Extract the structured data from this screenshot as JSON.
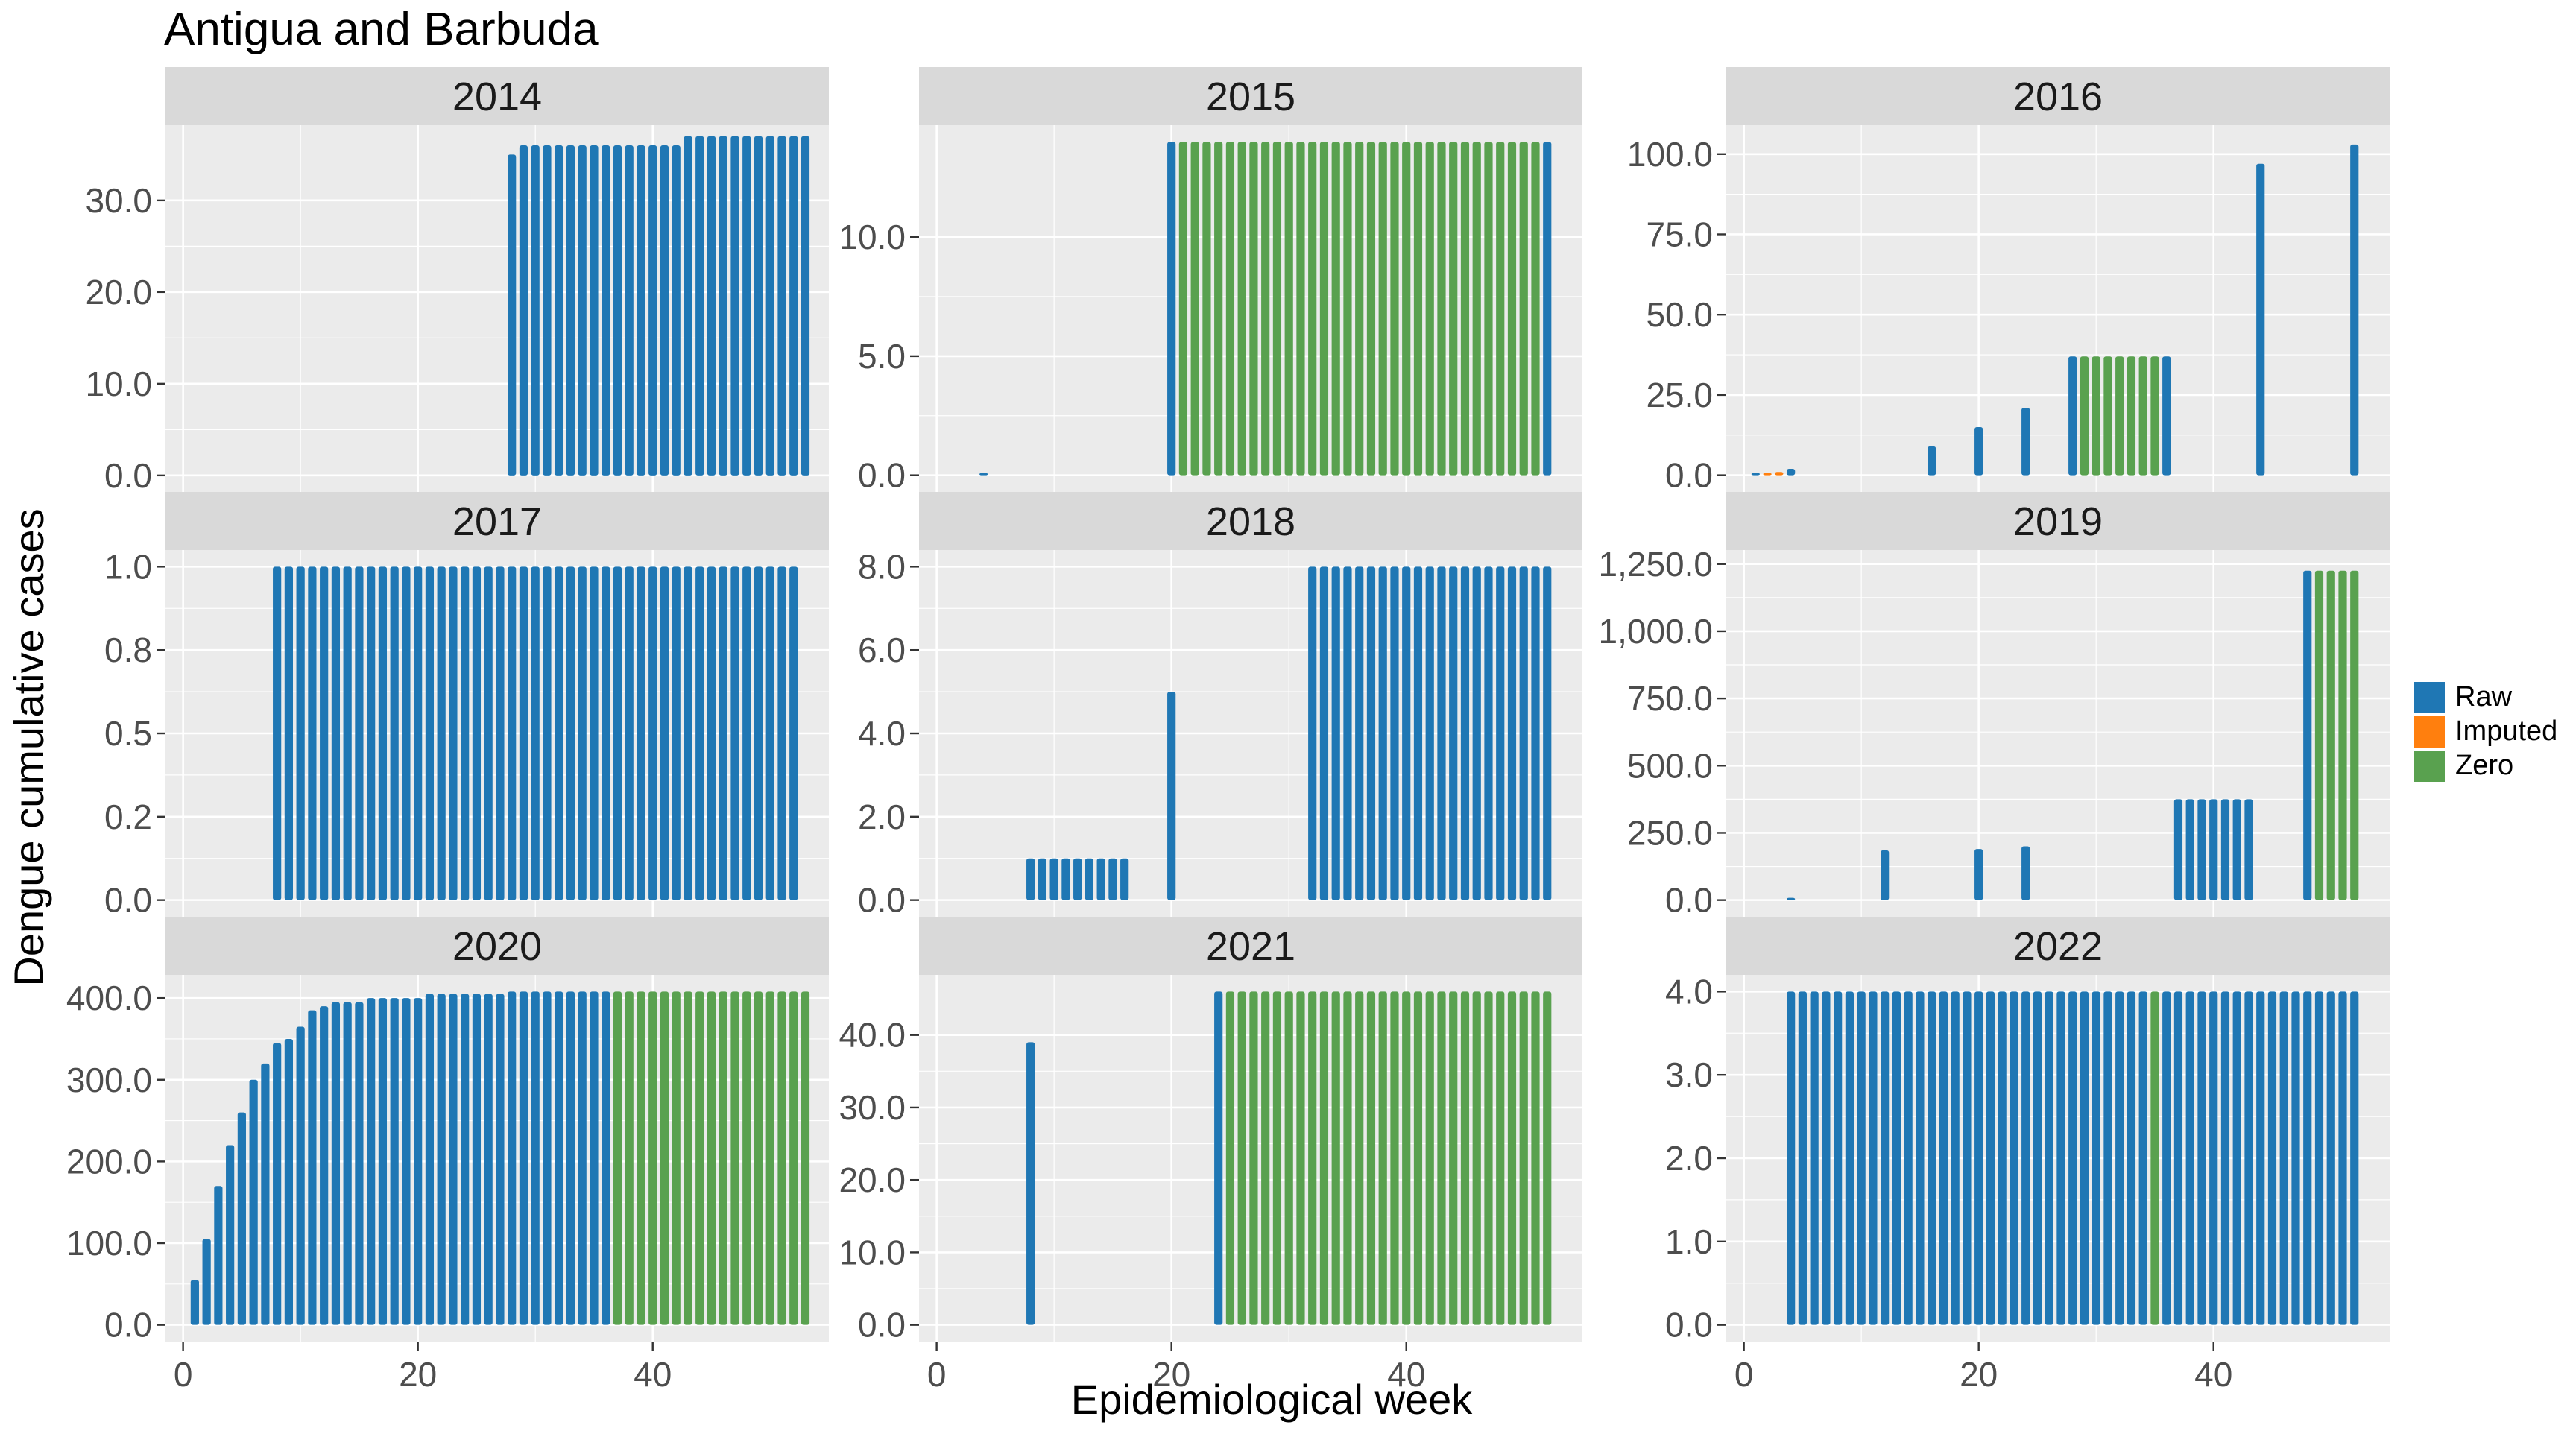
{
  "title": "Antigua and Barbuda",
  "xlabel": "Epidemiological week",
  "ylabel": "Dengue cumulative cases",
  "legend": [
    {
      "label": "Raw",
      "color": "#1F77B4"
    },
    {
      "label": "Imputed",
      "color": "#FF7F0E"
    },
    {
      "label": "Zero",
      "color": "#59A14F"
    }
  ],
  "chart_data": {
    "type": "bar",
    "facet": "year",
    "x_axis": {
      "range": [
        -1.5,
        55
      ],
      "ticks": [
        0,
        20,
        40
      ],
      "tick_labels": [
        "0",
        "20",
        "40"
      ]
    },
    "panels": [
      {
        "year": "2014",
        "ylim": [
          -1.8,
          38.2
        ],
        "y_ticks": [
          0,
          10,
          20,
          30
        ],
        "y_tick_labels": [
          "0.0",
          "10.0",
          "20.0",
          "30.0"
        ],
        "bars": [
          {
            "start": 28,
            "end": 42,
            "type": "Raw",
            "values": [
              35,
              36,
              36,
              36,
              36,
              36,
              36,
              36,
              36,
              36,
              36,
              36,
              36,
              36,
              36
            ]
          },
          {
            "start": 43,
            "end": 53,
            "type": "Raw",
            "values": [
              37,
              37,
              37,
              37,
              37,
              37,
              37,
              37,
              37,
              37,
              37
            ]
          }
        ]
      },
      {
        "year": "2015",
        "ylim": [
          -0.7,
          14.7
        ],
        "y_ticks": [
          0,
          5,
          10
        ],
        "y_tick_labels": [
          "0.0",
          "5.0",
          "10.0"
        ],
        "bars": [
          {
            "start": 4,
            "end": 4,
            "type": "Raw",
            "values": [
              0
            ]
          },
          {
            "start": 20,
            "end": 20,
            "type": "Raw",
            "values": [
              14
            ]
          },
          {
            "start": 21,
            "end": 51,
            "type": "Zero",
            "fill": 14
          },
          {
            "start": 52,
            "end": 52,
            "type": "Raw",
            "values": [
              14
            ]
          }
        ]
      },
      {
        "year": "2016",
        "ylim": [
          -5.2,
          109
        ],
        "y_ticks": [
          0,
          25,
          50,
          75,
          100
        ],
        "y_tick_labels": [
          "0.0",
          "25.0",
          "50.0",
          "75.0",
          "100.0"
        ],
        "bars": [
          {
            "start": 1,
            "end": 1,
            "type": "Raw",
            "values": [
              0
            ]
          },
          {
            "start": 2,
            "end": 3,
            "type": "Imputed",
            "values": [
              0,
              1
            ]
          },
          {
            "start": 4,
            "end": 4,
            "type": "Raw",
            "values": [
              2
            ]
          },
          {
            "start": 16,
            "end": 16,
            "type": "Raw",
            "values": [
              9
            ]
          },
          {
            "start": 20,
            "end": 20,
            "type": "Raw",
            "values": [
              15
            ]
          },
          {
            "start": 24,
            "end": 24,
            "type": "Raw",
            "values": [
              21
            ]
          },
          {
            "start": 28,
            "end": 28,
            "type": "Raw",
            "values": [
              37
            ]
          },
          {
            "start": 29,
            "end": 35,
            "type": "Zero",
            "fill": 37
          },
          {
            "start": 36,
            "end": 36,
            "type": "Raw",
            "values": [
              37
            ]
          },
          {
            "start": 44,
            "end": 44,
            "type": "Raw",
            "values": [
              97
            ]
          },
          {
            "start": 52,
            "end": 52,
            "type": "Raw",
            "values": [
              103
            ]
          }
        ]
      },
      {
        "year": "2017",
        "ylim": [
          -0.05,
          1.05
        ],
        "y_ticks": [
          0,
          0.25,
          0.5,
          0.75,
          1
        ],
        "y_tick_labels": [
          "0.0",
          "0.2",
          "0.5",
          "0.8",
          "1.0"
        ],
        "bars": [
          {
            "start": 8,
            "end": 52,
            "type": "Raw",
            "fill": 1
          }
        ]
      },
      {
        "year": "2018",
        "ylim": [
          -0.4,
          8.4
        ],
        "y_ticks": [
          0,
          2,
          4,
          6,
          8
        ],
        "y_tick_labels": [
          "0.0",
          "2.0",
          "4.0",
          "6.0",
          "8.0"
        ],
        "bars": [
          {
            "start": 8,
            "end": 16,
            "type": "Raw",
            "fill": 1
          },
          {
            "start": 20,
            "end": 20,
            "type": "Raw",
            "values": [
              5
            ]
          },
          {
            "start": 32,
            "end": 52,
            "type": "Raw",
            "fill": 8
          }
        ]
      },
      {
        "year": "2019",
        "ylim": [
          -62,
          1302
        ],
        "y_ticks": [
          0,
          250,
          500,
          750,
          1000,
          1250
        ],
        "y_tick_labels": [
          "0.0",
          "250.0",
          "500.0",
          "750.0",
          "1,000.0",
          "1,250.0"
        ],
        "bars": [
          {
            "start": 4,
            "end": 4,
            "type": "Raw",
            "values": [
              2
            ]
          },
          {
            "start": 12,
            "end": 12,
            "type": "Raw",
            "values": [
              185
            ]
          },
          {
            "start": 20,
            "end": 20,
            "type": "Raw",
            "values": [
              190
            ]
          },
          {
            "start": 24,
            "end": 24,
            "type": "Raw",
            "values": [
              200
            ]
          },
          {
            "start": 37,
            "end": 43,
            "type": "Raw",
            "fill": 375
          },
          {
            "start": 48,
            "end": 48,
            "type": "Raw",
            "values": [
              1225
            ]
          },
          {
            "start": 49,
            "end": 52,
            "type": "Zero",
            "fill": 1225
          }
        ]
      },
      {
        "year": "2020",
        "ylim": [
          -20.4,
          428.4
        ],
        "y_ticks": [
          0,
          100,
          200,
          300,
          400
        ],
        "y_tick_labels": [
          "0.0",
          "100.0",
          "200.0",
          "300.0",
          "400.0"
        ],
        "bars": [
          {
            "start": 1,
            "end": 27,
            "type": "Raw",
            "values": [
              55,
              105,
              170,
              220,
              260,
              300,
              320,
              345,
              350,
              365,
              385,
              390,
              395,
              395,
              395,
              400,
              400,
              400,
              400,
              400,
              405,
              405,
              405,
              405,
              405,
              405,
              405
            ]
          },
          {
            "start": 28,
            "end": 36,
            "type": "Raw",
            "fill": 408
          },
          {
            "start": 37,
            "end": 53,
            "type": "Zero",
            "fill": 408
          }
        ]
      },
      {
        "year": "2021",
        "ylim": [
          -2.3,
          48.3
        ],
        "y_ticks": [
          0,
          10,
          20,
          30,
          40
        ],
        "y_tick_labels": [
          "0.0",
          "10.0",
          "20.0",
          "30.0",
          "40.0"
        ],
        "bars": [
          {
            "start": 8,
            "end": 8,
            "type": "Raw",
            "values": [
              39
            ]
          },
          {
            "start": 24,
            "end": 24,
            "type": "Raw",
            "values": [
              46
            ]
          },
          {
            "start": 25,
            "end": 52,
            "type": "Zero",
            "fill": 46
          }
        ]
      },
      {
        "year": "2022",
        "ylim": [
          -0.2,
          4.2
        ],
        "y_ticks": [
          0,
          1,
          2,
          3,
          4
        ],
        "y_tick_labels": [
          "0.0",
          "1.0",
          "2.0",
          "3.0",
          "4.0"
        ],
        "bars": [
          {
            "start": 4,
            "end": 34,
            "type": "Raw",
            "fill": 4
          },
          {
            "start": 35,
            "end": 35,
            "type": "Zero",
            "fill": 4
          },
          {
            "start": 36,
            "end": 52,
            "type": "Raw",
            "fill": 4
          }
        ]
      }
    ]
  }
}
